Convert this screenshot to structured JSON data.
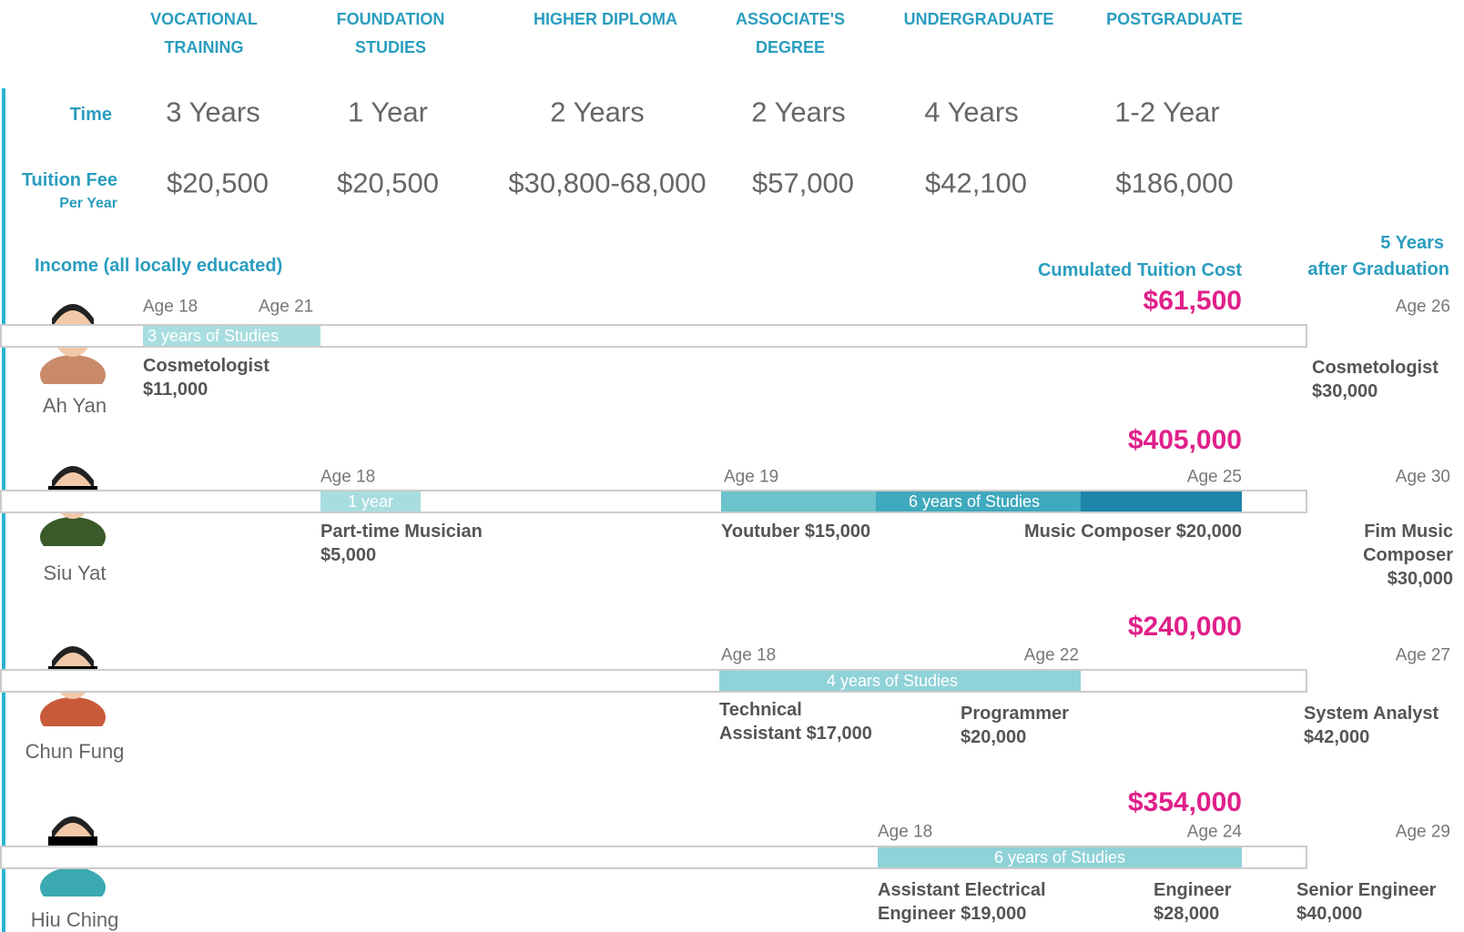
{
  "header": {
    "columns": [
      [
        "VOCATIONAL",
        "TRAINING"
      ],
      [
        "FOUNDATION",
        "STUDIES"
      ],
      [
        "HIGHER DIPLOMA"
      ],
      [
        "ASSOCIATE'S",
        "DEGREE"
      ],
      [
        "UNDERGRADUATE"
      ],
      [
        "POSTGRADUATE"
      ]
    ]
  },
  "rows": {
    "time": {
      "label": "Time",
      "values": [
        "3 Years",
        "1 Year",
        "2 Years",
        "2 Years",
        "4 Years",
        "1-2 Year"
      ]
    },
    "fee": {
      "label": "Tuition Fee",
      "sublabel": "Per Year",
      "values": [
        "$20,500",
        "$20,500",
        "$30,800-68,000",
        "$57,000",
        "$42,100",
        "$186,000"
      ]
    }
  },
  "income": {
    "title": "Income (all locally educated)",
    "cost_header": "Cumulated Tuition Cost",
    "after_header": [
      "5 Years",
      "after Graduation"
    ]
  },
  "people": [
    {
      "name": "Ah Yan",
      "cost": "$61,500",
      "ages": [
        "Age 18",
        "Age 21",
        "Age 26"
      ],
      "studies": [
        "3 years of Studies"
      ],
      "jobs": [
        [
          "Cosmetologist",
          "$11,000"
        ],
        [
          "Cosmetologist",
          "$30,000"
        ]
      ]
    },
    {
      "name": "Siu Yat",
      "cost": "$405,000",
      "ages": [
        "Age 18",
        "Age 19",
        "Age 25",
        "Age 30"
      ],
      "studies": [
        "1 year",
        "6 years of Studies"
      ],
      "jobs": [
        [
          "Part-time Musician",
          "$5,000"
        ],
        [
          "Youtuber $15,000"
        ],
        [
          "Music Composer $20,000"
        ],
        [
          "Fim Music",
          "Composer",
          "$30,000"
        ]
      ]
    },
    {
      "name": "Chun Fung",
      "cost": "$240,000",
      "ages": [
        "Age 18",
        "Age 22",
        "Age 27"
      ],
      "studies": [
        "4 years of Studies"
      ],
      "jobs": [
        [
          "Technical",
          "Assistant $17,000"
        ],
        [
          "Programmer",
          "$20,000"
        ],
        [
          "System Analyst",
          "$42,000"
        ]
      ]
    },
    {
      "name": "Hiu Ching",
      "cost": "$354,000",
      "ages": [
        "Age 18",
        "Age 24",
        "Age 29"
      ],
      "studies": [
        "6 years of Studies"
      ],
      "jobs": [
        [
          "Assistant Electrical",
          "Engineer $19,000"
        ],
        [
          "Engineer",
          "$28,000"
        ],
        [
          "Senior Engineer",
          "$40,000"
        ]
      ]
    }
  ]
}
